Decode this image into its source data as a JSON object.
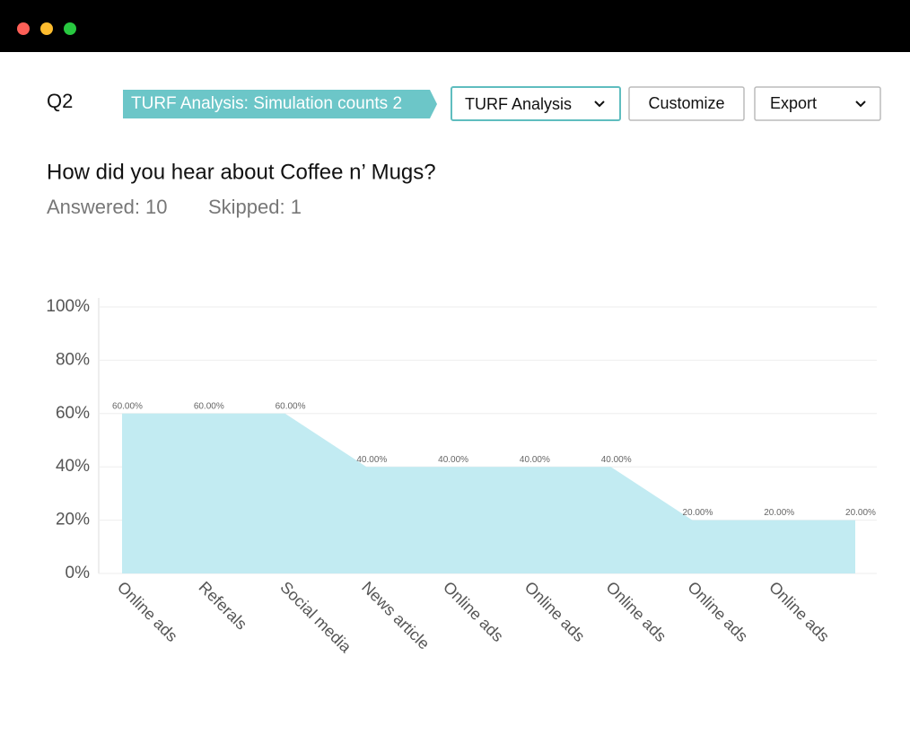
{
  "header": {
    "question_number": "Q2",
    "tag": "TURF Analysis: Simulation counts 2",
    "dropdown": "TURF Analysis",
    "customize": "Customize",
    "export": "Export"
  },
  "question": {
    "title": "How did you hear about Coffee n’ Mugs?",
    "answered": "Answered: 10",
    "skipped": "Skipped: 1"
  },
  "chart_data": {
    "type": "area",
    "categories": [
      "Online ads",
      "Referals",
      "Social media",
      "News article",
      "Online ads",
      "Online ads",
      "Online ads",
      "Online ads",
      "Online ads",
      null
    ],
    "values": [
      60,
      60,
      60,
      40,
      40,
      40,
      40,
      20,
      20,
      20
    ],
    "value_labels": [
      "60.00%",
      "60.00%",
      "60.00%",
      "40.00%",
      "40.00%",
      "40.00%",
      "40.00%",
      "20.00%",
      "20.00%",
      "20.00%"
    ],
    "color": "#c2ebf2",
    "ylim": [
      0,
      100
    ],
    "yticks": [
      {
        "value": 0,
        "label": "0%"
      },
      {
        "value": 20,
        "label": "20%"
      },
      {
        "value": 40,
        "label": "40%"
      },
      {
        "value": 60,
        "label": "60%"
      },
      {
        "value": 80,
        "label": "80%"
      },
      {
        "value": 100,
        "label": "100%"
      }
    ],
    "grid": true
  }
}
